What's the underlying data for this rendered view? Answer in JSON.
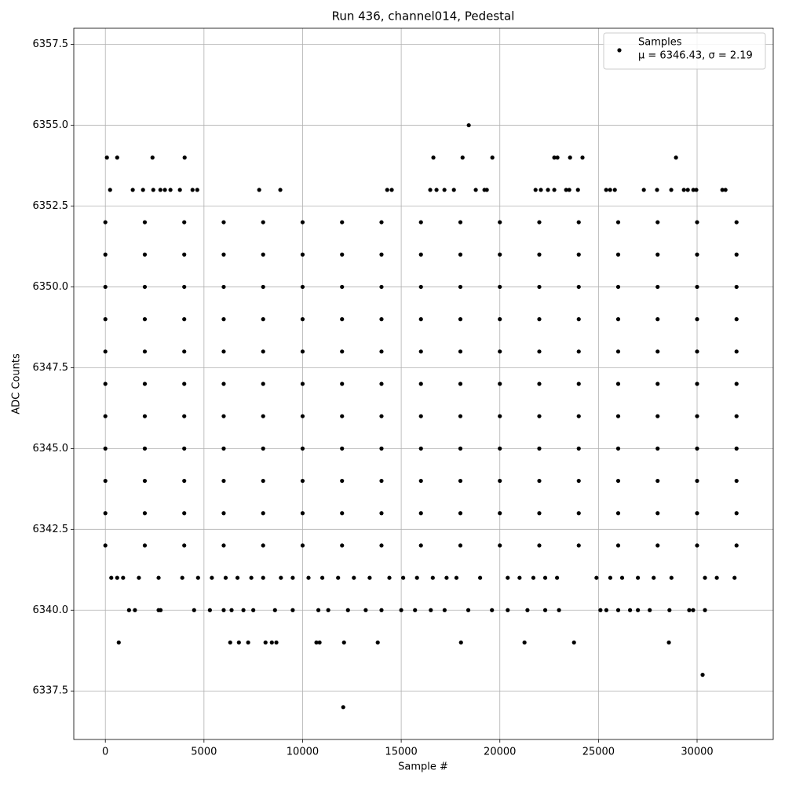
{
  "chart_data": {
    "type": "scatter",
    "title": "Run 436, channel014, Pedestal",
    "x_label": "Sample #",
    "y_label": "ADC Counts",
    "grid": true,
    "legend_position": "upper right",
    "legend_stats": "μ = 6346.43, σ = 2.19",
    "xlim": [
      -1600,
      33860
    ],
    "ylim": [
      6336,
      6358
    ],
    "xticks": [
      0,
      5000,
      10000,
      15000,
      20000,
      25000,
      30000
    ],
    "yticks": [
      {
        "value": 6337.5,
        "label": "6337.5"
      },
      {
        "value": 6340,
        "label": "6340.0"
      },
      {
        "value": 6342.5,
        "label": "6342.5"
      },
      {
        "value": 6345,
        "label": "6345.0"
      },
      {
        "value": 6347.5,
        "label": "6347.5"
      },
      {
        "value": 6350,
        "label": "6350.0"
      },
      {
        "value": 6352.5,
        "label": "6352.5"
      },
      {
        "value": 6355,
        "label": "6355.0"
      },
      {
        "value": 6357.5,
        "label": "6357.5"
      }
    ],
    "series": [
      {
        "name": "Samples",
        "color": "#000000",
        "x": [
          18424,
          80,
          600,
          2390,
          4020,
          16630,
          18110,
          19620,
          22760,
          22920,
          23560,
          24190,
          28930,
          240,
          1390,
          1910,
          2430,
          2790,
          3020,
          3300,
          3780,
          4420,
          4660,
          7800,
          8870,
          14290,
          14520,
          16470,
          16790,
          17190,
          17670,
          18780,
          19220,
          19340,
          21810,
          22080,
          22440,
          22760,
          23360,
          23520,
          23960,
          25390,
          25590,
          25830,
          27300,
          27970,
          28690,
          29330,
          29530,
          29810,
          29960,
          31280,
          31440,
          30280,
          12060,
          680,
          6330,
          6770,
          7240,
          8120,
          8440,
          8670,
          10700,
          10860,
          12100,
          13810,
          18030,
          21250,
          23760,
          28570,
          1200,
          1500,
          2700,
          2800,
          4500,
          5300,
          6000,
          6400,
          7000,
          7500,
          8600,
          9500,
          10800,
          11300,
          12300,
          13200,
          14000,
          15000,
          15700,
          16500,
          17200,
          18400,
          19600,
          20400,
          21400,
          22300,
          23000,
          25100,
          25400,
          26000,
          26600,
          27000,
          27600,
          28600,
          29600,
          29800,
          30400,
          300,
          600,
          900,
          1700,
          2700,
          3900,
          4700,
          5400,
          6100,
          6700,
          7400,
          8000,
          8900,
          9500,
          10300,
          11000,
          11800,
          12600,
          13400,
          14400,
          15100,
          15800,
          16600,
          17300,
          17800,
          19000,
          20400,
          21000,
          21700,
          22300,
          22900,
          24900,
          25600,
          26200,
          27000,
          27800,
          28700,
          30400,
          31000,
          31900,
          0,
          2000,
          4000,
          6000,
          8000,
          10000,
          12000,
          14000,
          16000,
          18000,
          20000,
          22000,
          24000,
          26000,
          28000,
          30000,
          32000,
          0,
          2000,
          4000,
          6000,
          8000,
          10000,
          12000,
          14000,
          16000,
          18000,
          20000,
          22000,
          24000,
          26000,
          28000,
          30000,
          32000,
          0,
          2000,
          4000,
          6000,
          8000,
          10000,
          12000,
          14000,
          16000,
          18000,
          20000,
          22000,
          24000,
          26000,
          28000,
          30000,
          32000,
          0,
          2000,
          4000,
          6000,
          8000,
          10000,
          12000,
          14000,
          16000,
          18000,
          20000,
          22000,
          24000,
          26000,
          28000,
          30000,
          32000,
          0,
          2000,
          4000,
          6000,
          8000,
          10000,
          12000,
          14000,
          16000,
          18000,
          20000,
          22000,
          24000,
          26000,
          28000,
          30000,
          32000,
          0,
          2000,
          4000,
          6000,
          8000,
          10000,
          12000,
          14000,
          16000,
          18000,
          20000,
          22000,
          24000,
          26000,
          28000,
          30000,
          32000,
          0,
          2000,
          4000,
          6000,
          8000,
          10000,
          12000,
          14000,
          16000,
          18000,
          20000,
          22000,
          24000,
          26000,
          28000,
          30000,
          32000,
          0,
          2000,
          4000,
          6000,
          8000,
          10000,
          12000,
          14000,
          16000,
          18000,
          20000,
          22000,
          24000,
          26000,
          28000,
          30000,
          32000,
          0,
          2000,
          4000,
          6000,
          8000,
          10000,
          12000,
          14000,
          16000,
          18000,
          20000,
          22000,
          24000,
          26000,
          28000,
          30000,
          32000,
          0,
          2000,
          4000,
          6000,
          8000,
          10000,
          12000,
          14000,
          16000,
          18000,
          20000,
          22000,
          24000,
          26000,
          28000,
          30000,
          32000,
          0,
          2000,
          4000,
          6000,
          8000,
          10000,
          12000,
          14000,
          16000,
          18000,
          20000,
          22000,
          24000,
          26000,
          28000,
          30000,
          32000
        ],
        "values": [
          6355,
          6354,
          6354,
          6354,
          6354,
          6354,
          6354,
          6354,
          6354,
          6354,
          6354,
          6354,
          6354,
          6353,
          6353,
          6353,
          6353,
          6353,
          6353,
          6353,
          6353,
          6353,
          6353,
          6353,
          6353,
          6353,
          6353,
          6353,
          6353,
          6353,
          6353,
          6353,
          6353,
          6353,
          6353,
          6353,
          6353,
          6353,
          6353,
          6353,
          6353,
          6353,
          6353,
          6353,
          6353,
          6353,
          6353,
          6353,
          6353,
          6353,
          6353,
          6353,
          6353,
          6338,
          6337,
          6339,
          6339,
          6339,
          6339,
          6339,
          6339,
          6339,
          6339,
          6339,
          6339,
          6339,
          6339,
          6339,
          6339,
          6339,
          6340,
          6340,
          6340,
          6340,
          6340,
          6340,
          6340,
          6340,
          6340,
          6340,
          6340,
          6340,
          6340,
          6340,
          6340,
          6340,
          6340,
          6340,
          6340,
          6340,
          6340,
          6340,
          6340,
          6340,
          6340,
          6340,
          6340,
          6340,
          6340,
          6340,
          6340,
          6340,
          6340,
          6340,
          6340,
          6340,
          6340,
          6341,
          6341,
          6341,
          6341,
          6341,
          6341,
          6341,
          6341,
          6341,
          6341,
          6341,
          6341,
          6341,
          6341,
          6341,
          6341,
          6341,
          6341,
          6341,
          6341,
          6341,
          6341,
          6341,
          6341,
          6341,
          6341,
          6341,
          6341,
          6341,
          6341,
          6341,
          6341,
          6341,
          6341,
          6341,
          6341,
          6341,
          6341,
          6341,
          6341,
          6342,
          6342,
          6342,
          6342,
          6342,
          6342,
          6342,
          6342,
          6342,
          6342,
          6342,
          6342,
          6342,
          6342,
          6342,
          6342,
          6342,
          6343,
          6343,
          6343,
          6343,
          6343,
          6343,
          6343,
          6343,
          6343,
          6343,
          6343,
          6343,
          6343,
          6343,
          6343,
          6343,
          6343,
          6344,
          6344,
          6344,
          6344,
          6344,
          6344,
          6344,
          6344,
          6344,
          6344,
          6344,
          6344,
          6344,
          6344,
          6344,
          6344,
          6344,
          6345,
          6345,
          6345,
          6345,
          6345,
          6345,
          6345,
          6345,
          6345,
          6345,
          6345,
          6345,
          6345,
          6345,
          6345,
          6345,
          6345,
          6346,
          6346,
          6346,
          6346,
          6346,
          6346,
          6346,
          6346,
          6346,
          6346,
          6346,
          6346,
          6346,
          6346,
          6346,
          6346,
          6346,
          6347,
          6347,
          6347,
          6347,
          6347,
          6347,
          6347,
          6347,
          6347,
          6347,
          6347,
          6347,
          6347,
          6347,
          6347,
          6347,
          6347,
          6348,
          6348,
          6348,
          6348,
          6348,
          6348,
          6348,
          6348,
          6348,
          6348,
          6348,
          6348,
          6348,
          6348,
          6348,
          6348,
          6348,
          6349,
          6349,
          6349,
          6349,
          6349,
          6349,
          6349,
          6349,
          6349,
          6349,
          6349,
          6349,
          6349,
          6349,
          6349,
          6349,
          6349,
          6350,
          6350,
          6350,
          6350,
          6350,
          6350,
          6350,
          6350,
          6350,
          6350,
          6350,
          6350,
          6350,
          6350,
          6350,
          6350,
          6350,
          6351,
          6351,
          6351,
          6351,
          6351,
          6351,
          6351,
          6351,
          6351,
          6351,
          6351,
          6351,
          6351,
          6351,
          6351,
          6351,
          6351,
          6352,
          6352,
          6352,
          6352,
          6352,
          6352,
          6352,
          6352,
          6352,
          6352,
          6352,
          6352,
          6352,
          6352,
          6352,
          6352,
          6352
        ]
      }
    ]
  }
}
